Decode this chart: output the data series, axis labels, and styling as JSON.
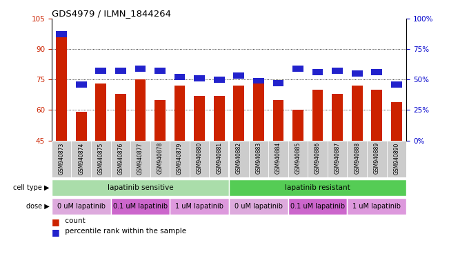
{
  "title": "GDS4979 / ILMN_1844264",
  "samples": [
    "GSM940873",
    "GSM940874",
    "GSM940875",
    "GSM940876",
    "GSM940877",
    "GSM940878",
    "GSM940879",
    "GSM940880",
    "GSM940881",
    "GSM940882",
    "GSM940883",
    "GSM940884",
    "GSM940885",
    "GSM940886",
    "GSM940887",
    "GSM940888",
    "GSM940889",
    "GSM940890"
  ],
  "counts": [
    98,
    59,
    73,
    68,
    75,
    65,
    72,
    67,
    67,
    72,
    75,
    65,
    60,
    70,
    68,
    72,
    70,
    64
  ],
  "percentiles": [
    87,
    46,
    57,
    57,
    59,
    57,
    52,
    51,
    50,
    53,
    49,
    47,
    59,
    56,
    57,
    55,
    56,
    46
  ],
  "ymin": 45,
  "ymax": 105,
  "bar_color": "#cc2200",
  "percentile_color": "#2222cc",
  "bar_width": 0.55,
  "cell_type_groups": [
    {
      "label": "lapatinib sensitive",
      "start": 0,
      "end": 9,
      "color": "#aaddaa"
    },
    {
      "label": "lapatinib resistant",
      "start": 9,
      "end": 18,
      "color": "#55cc55"
    }
  ],
  "dose_groups": [
    {
      "label": "0 uM lapatinib",
      "start": 0,
      "end": 3,
      "color": "#ddaadd"
    },
    {
      "label": "0.1 uM lapatinib",
      "start": 3,
      "end": 6,
      "color": "#cc66cc"
    },
    {
      "label": "1 uM lapatinib",
      "start": 6,
      "end": 9,
      "color": "#dd99dd"
    },
    {
      "label": "0 uM lapatinib",
      "start": 9,
      "end": 12,
      "color": "#ddaadd"
    },
    {
      "label": "0.1 uM lapatinib",
      "start": 12,
      "end": 15,
      "color": "#cc66cc"
    },
    {
      "label": "1 uM lapatinib",
      "start": 15,
      "end": 18,
      "color": "#dd99dd"
    }
  ],
  "background_color": "#ffffff",
  "grid_color": "#000000",
  "tick_color_left": "#cc2200",
  "tick_color_right": "#0000cc",
  "sample_bg_color": "#cccccc",
  "row_label_color": "#000000",
  "yticks_left": [
    45,
    60,
    75,
    90,
    105
  ],
  "yticks_right_labels": [
    "0%",
    "25%",
    "50%",
    "75%",
    "100%"
  ]
}
